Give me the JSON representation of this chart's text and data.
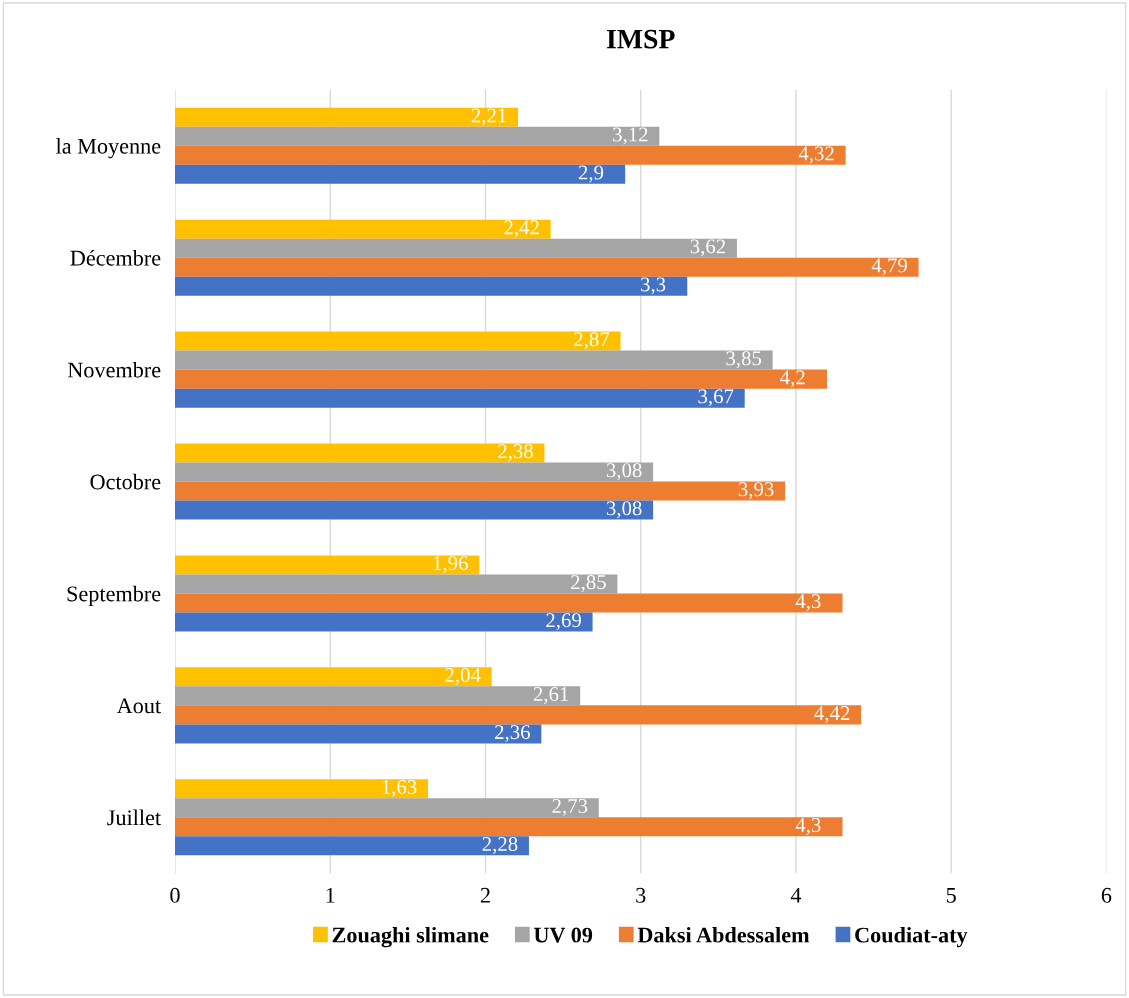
{
  "chart_data": {
    "type": "bar",
    "orientation": "horizontal",
    "title": "IMSP",
    "categories": [
      "la Moyenne",
      "Décembre",
      "Novembre",
      "Octobre",
      "Septembre",
      "Aout",
      "Juillet"
    ],
    "series": [
      {
        "name": "Zouaghi slimane",
        "color": "#ffc000",
        "values": [
          2.21,
          2.42,
          2.87,
          2.38,
          1.96,
          2.04,
          1.63
        ],
        "value_labels": [
          "2,21",
          "2,42",
          "2,87",
          "2,38",
          "1,96",
          "2,04",
          "1,63"
        ]
      },
      {
        "name": "UV 09",
        "color": "#a5a5a5",
        "values": [
          3.12,
          3.62,
          3.85,
          3.08,
          2.85,
          2.61,
          2.73
        ],
        "value_labels": [
          "3,12",
          "3,62",
          "3,85",
          "3,08",
          "2,85",
          "2,61",
          "2,73"
        ]
      },
      {
        "name": "Daksi Abdessalem",
        "color": "#ed7d31",
        "values": [
          4.32,
          4.79,
          4.2,
          3.93,
          4.3,
          4.42,
          4.3
        ],
        "value_labels": [
          "4,32",
          "4,79",
          "4,2",
          "3,93",
          "4,3",
          "4,42",
          "4,3"
        ]
      },
      {
        "name": "Coudiat-aty",
        "color": "#4472c4",
        "values": [
          2.9,
          3.3,
          3.67,
          3.08,
          2.69,
          2.36,
          2.28
        ],
        "value_labels": [
          "2,9",
          "3,3",
          "3,67",
          "3,08",
          "2,69",
          "2,36",
          "2,28"
        ]
      }
    ],
    "xlim": [
      0,
      6
    ],
    "xticks": [
      0,
      1,
      2,
      3,
      4,
      5,
      6
    ],
    "grid": "x",
    "legend": "bottom"
  }
}
